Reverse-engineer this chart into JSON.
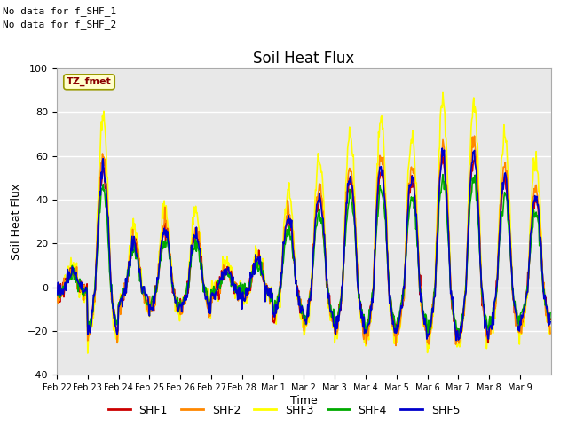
{
  "title": "Soil Heat Flux",
  "ylabel": "Soil Heat Flux",
  "xlabel": "Time",
  "note_line1": "No data for f_SHF_1",
  "note_line2": "No data for f_SHF_2",
  "tz_label": "TZ_fmet",
  "ylim": [
    -40,
    100
  ],
  "yticks": [
    -40,
    -20,
    0,
    20,
    40,
    60,
    80,
    100
  ],
  "colors": {
    "SHF1": "#cc0000",
    "SHF2": "#ff8800",
    "SHF3": "#ffff00",
    "SHF4": "#00aa00",
    "SHF5": "#0000cc"
  },
  "tick_labels": [
    "Feb 22",
    "Feb 23",
    "Feb 24",
    "Feb 25",
    "Feb 26",
    "Feb 27",
    "Feb 28",
    "Mar 1",
    "Mar 2",
    "Mar 3",
    "Mar 4",
    "Mar 5",
    "Mar 6",
    "Mar 7",
    "Mar 8",
    "Mar 9"
  ],
  "day_amps": [
    0.25,
    1.9,
    0.7,
    0.9,
    0.85,
    0.25,
    0.4,
    1.1,
    1.45,
    1.75,
    1.9,
    1.75,
    2.1,
    2.1,
    1.75,
    1.45
  ],
  "background_color": "#ffffff",
  "plot_bg": "#e8e8e8"
}
